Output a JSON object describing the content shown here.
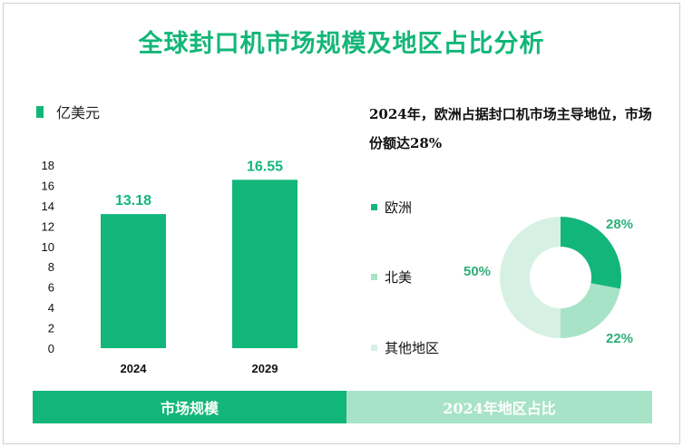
{
  "title": "全球封口机市场规模及地区占比分析",
  "colors": {
    "primary": "#13b67a",
    "secondary": "#a8e3c7",
    "tertiary": "#d6f1e4",
    "text_green": "#2fae7a"
  },
  "bar_legend_label": "亿美元",
  "pie_note": "2024年，欧洲占据封口机市场主导地位，市场份额达28%",
  "footer": {
    "left": "市场规模",
    "right": "2024年地区占比"
  },
  "chart_data": [
    {
      "type": "bar",
      "categories": [
        "2024",
        "2029"
      ],
      "values": [
        13.18,
        16.55
      ],
      "value_labels": [
        "13.18",
        "16.55"
      ],
      "series": [
        {
          "name": "亿美元",
          "values": [
            13.18,
            16.55
          ]
        }
      ],
      "yticks": [
        0,
        2,
        4,
        6,
        8,
        10,
        12,
        14,
        16,
        18
      ],
      "ylim": [
        0,
        18
      ],
      "grid": false,
      "legend": "top-left"
    },
    {
      "type": "pie",
      "donut": true,
      "labels": [
        "欧洲",
        "北美",
        "其他地区"
      ],
      "values": [
        28,
        22,
        50
      ],
      "value_labels": [
        "28%",
        "22%",
        "50%"
      ],
      "colors": [
        "#13b67a",
        "#a8e3c7",
        "#d6f1e4"
      ],
      "legend": "left"
    }
  ]
}
